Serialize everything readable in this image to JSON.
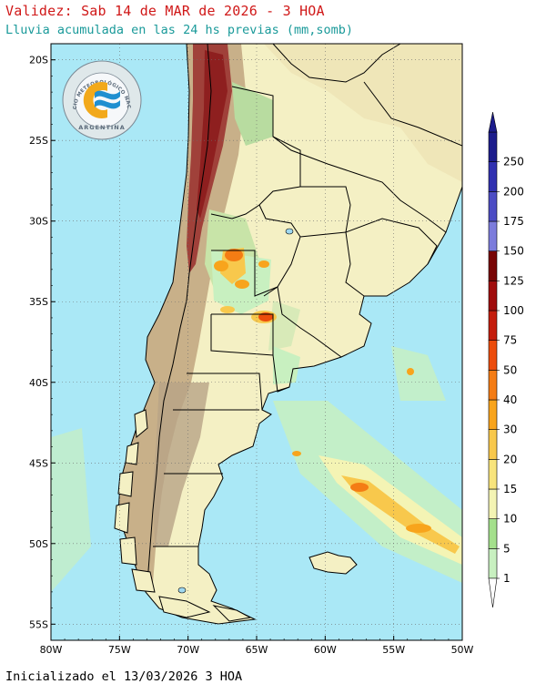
{
  "header": {
    "title": "Validez: Sab 14 de MAR de 2026 - 3 HOA",
    "subtitle": "Lluvia acumulada en las 24 hs previas (mm,somb)"
  },
  "footer": {
    "init": "Inicializado el 13/03/2026 3 HOA"
  },
  "logo": {
    "ring_text": "SERVICIO METEOROLÓGICO NACIONAL",
    "country": "ARGENTINA",
    "colors": {
      "sun": "#f2a91b",
      "wave": "#1f8fd0",
      "ring": "#5b6a7a"
    }
  },
  "map": {
    "lon_range": [
      -80,
      -50
    ],
    "lat_range": [
      -56,
      -19
    ],
    "lat_ticks": [
      "20S",
      "25S",
      "30S",
      "35S",
      "40S",
      "45S",
      "50S",
      "55S"
    ],
    "lon_ticks": [
      "80W",
      "75W",
      "70W",
      "65W",
      "60W",
      "55W",
      "50W"
    ],
    "grid": "dotted"
  },
  "colorbar": {
    "labels": [
      "1",
      "5",
      "10",
      "15",
      "20",
      "30",
      "40",
      "50",
      "75",
      "100",
      "125",
      "150",
      "175",
      "200",
      "250"
    ],
    "colors": [
      "#c8f0c0",
      "#a4e08c",
      "#f4f4b4",
      "#f8e47c",
      "#f8c84c",
      "#f8a41c",
      "#f47c14",
      "#ec4c0c",
      "#c41c0c",
      "#a00c0c",
      "#780404",
      "#7c7cdc",
      "#4c4cc4",
      "#3030b0",
      "#1c1c8c"
    ]
  }
}
